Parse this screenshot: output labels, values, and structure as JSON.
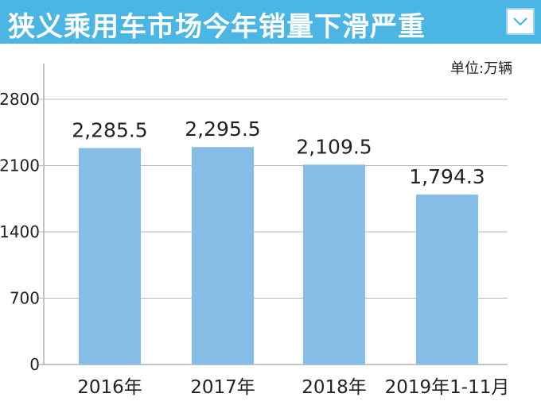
{
  "header": {
    "title": "狭义乘用车市场今年销量下滑严重",
    "dropdown_icon": "chevron-down-icon",
    "background": "#4bb6e4"
  },
  "chart_data": {
    "type": "bar",
    "unit_label": "单位:万辆",
    "categories": [
      "2016年",
      "2017年",
      "2018年",
      "2019年1-11月"
    ],
    "values": [
      2285.5,
      2295.5,
      2109.5,
      1794.3
    ],
    "data_labels": [
      "2,285.5",
      "2,295.5",
      "2,109.5",
      "1,794.3"
    ],
    "yticks": [
      0,
      700,
      1400,
      2100,
      2800
    ],
    "ylim": [
      0,
      2800
    ],
    "grid": true,
    "bar_color": "#85bde6",
    "grid_color": "#bbbbbb"
  }
}
